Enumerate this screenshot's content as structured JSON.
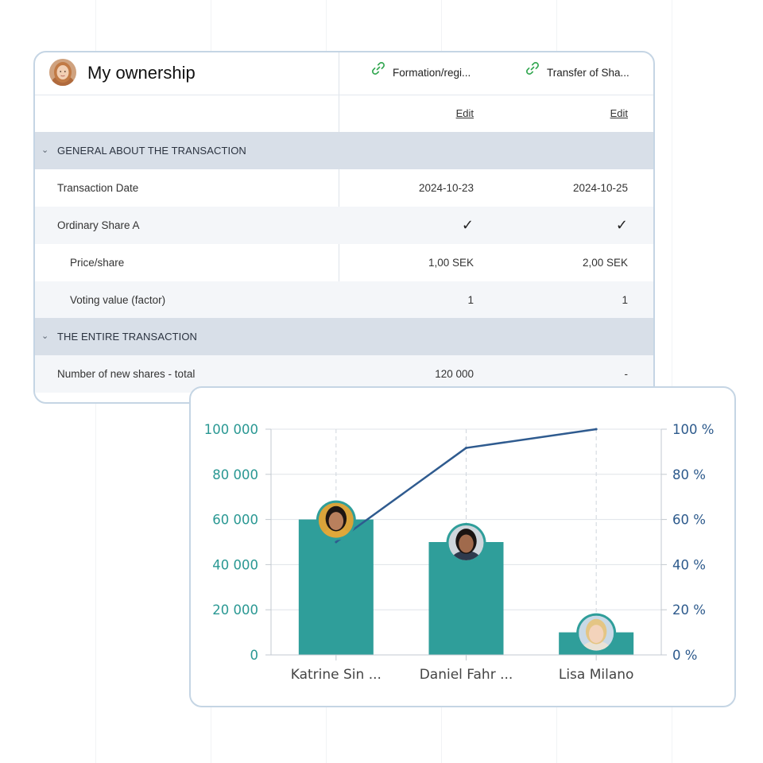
{
  "table": {
    "title": "My ownership",
    "columns": [
      {
        "label": "Formation/regi...",
        "edit_label": "Edit"
      },
      {
        "label": "Transfer of Sha...",
        "edit_label": "Edit"
      }
    ],
    "sections": [
      {
        "label": "GENERAL ABOUT THE TRANSACTION",
        "rows": [
          {
            "label": "Transaction Date",
            "values": [
              "2024-10-23",
              "2024-10-25"
            ]
          },
          {
            "label": "Ordinary Share A",
            "values": [
              "✓",
              "✓"
            ]
          },
          {
            "label": "Price/share",
            "values": [
              "1,00 SEK",
              "2,00 SEK"
            ]
          },
          {
            "label": "Voting value (factor)",
            "values": [
              "1",
              "1"
            ]
          }
        ]
      },
      {
        "label": "THE ENTIRE TRANSACTION",
        "rows": [
          {
            "label": "Number of new shares - total",
            "values": [
              "120 000",
              "-"
            ]
          }
        ]
      }
    ]
  },
  "icons": {
    "link": "link-icon",
    "chevron": "chevron-down-icon",
    "check": "checkmark-icon"
  },
  "colors": {
    "bar": "#2f9e9a",
    "line": "#2f5b8f",
    "left_axis": "#2a9893",
    "right_axis": "#2d5a8c",
    "section_bg": "#d8dfe8",
    "link_icon": "#35a853"
  },
  "chart_data": {
    "type": "bar",
    "categories": [
      "Katrine Sin ...",
      "Daniel Fahr ...",
      "Lisa Milano"
    ],
    "series": [
      {
        "type": "bar",
        "axis": "left",
        "values": [
          60000,
          50000,
          10000
        ]
      },
      {
        "type": "line",
        "axis": "right",
        "values": [
          50,
          91.7,
          100
        ]
      }
    ],
    "left_axis": {
      "ticks": [
        "0",
        "20 000",
        "40 000",
        "60 000",
        "80 000",
        "100 000"
      ],
      "ylim": [
        0,
        100000
      ]
    },
    "right_axis": {
      "ticks": [
        "0 %",
        "20 %",
        "40 %",
        "60 %",
        "80 %",
        "100 %"
      ],
      "ylim": [
        0,
        100
      ]
    },
    "grid": true,
    "legend": "none"
  }
}
